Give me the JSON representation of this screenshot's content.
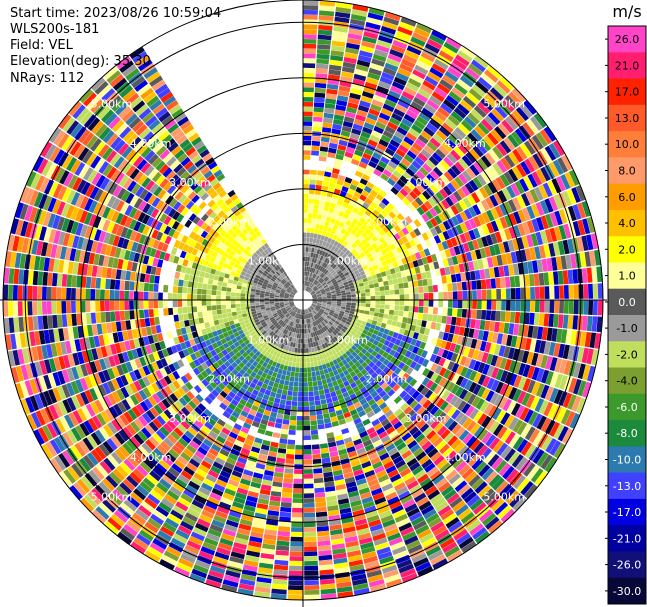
{
  "header": {
    "start_time": "Start time: 2023/08/26 10:59:04",
    "instrument": "WLS200s-181",
    "field": "Field: VEL",
    "elevation": "Elevation(deg): 35.30",
    "nrays": "NRays: 112"
  },
  "colorbar": {
    "unit": "m/s",
    "ticks": [
      "26.0",
      "21.0",
      "17.0",
      "13.0",
      "10.0",
      "8.0",
      "6.0",
      "4.0",
      "2.0",
      "1.0",
      "0.0",
      "-1.0",
      "-2.0",
      "-4.0",
      "-6.0",
      "-8.0",
      "-10.0",
      "-13.0",
      "-17.0",
      "-21.0",
      "-26.0",
      "-30.0"
    ],
    "colors": [
      "#ff44c8",
      "#ff1f6e",
      "#ff2200",
      "#ff5a2a",
      "#ff7f3a",
      "#ff9a6a",
      "#ff9d00",
      "#ffc000",
      "#ffff00",
      "#ffff99",
      "#5a5a5a",
      "#9a9a9a",
      "#bfde5e",
      "#7ca030",
      "#3c9a2c",
      "#1c8a3c",
      "#2c7aaf",
      "#4040ff",
      "#0000e0",
      "#0000a0",
      "#101078",
      "#080838"
    ]
  },
  "chart_data": {
    "type": "heatmap",
    "projection": "polar PPI",
    "field": "VEL",
    "unit": "m/s",
    "range_ring_labels_km": [
      "1.00km",
      "2.00km",
      "3.00km",
      "4.00km",
      "5.00km"
    ],
    "range_rings_km": [
      1,
      2,
      3,
      4,
      5
    ],
    "max_range_km": 5.4,
    "color_levels": [
      26.0,
      21.0,
      17.0,
      13.0,
      10.0,
      8.0,
      6.0,
      4.0,
      2.0,
      1.0,
      0.0,
      -1.0,
      -2.0,
      -4.0,
      -6.0,
      -8.0,
      -10.0,
      -13.0,
      -17.0,
      -21.0,
      -26.0,
      -30.0
    ],
    "nrays": 112,
    "elevation_deg": 35.3,
    "data_gap_azimuth_deg": [
      -32,
      0
    ],
    "near_field_pattern": "positive (yellow/orange) velocities to the north within ~2 km, near-zero (grey) around 1 km, negative (green/blue) velocities to the south; noise beyond ~2.5 km"
  }
}
